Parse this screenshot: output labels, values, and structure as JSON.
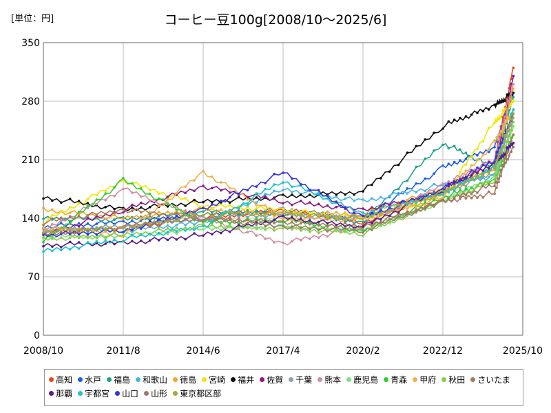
{
  "chart_data": {
    "type": "line",
    "unit_label": "[単位：円]",
    "title": "コーヒー豆100g[2008/10～2025/6]",
    "y_ticks": [
      "0",
      "70",
      "140",
      "210",
      "280",
      "350"
    ],
    "x_ticks": [
      "2008/10",
      "2011/8",
      "2014/6",
      "2017/4",
      "2020/2",
      "2022/12",
      "2025/10"
    ],
    "ylim": [
      0,
      350
    ],
    "grid": true,
    "legend_position": "bottom",
    "series": [
      {
        "name": "高知",
        "color": "#e8481c",
        "points": [
          [
            "2008/10",
            125
          ],
          [
            "2011/8",
            128
          ],
          [
            "2014/6",
            140
          ],
          [
            "2017/4",
            150
          ],
          [
            "2020/2",
            135
          ],
          [
            "2022/12",
            170
          ],
          [
            "2024/10",
            210
          ],
          [
            "2025/6",
            320
          ]
        ]
      },
      {
        "name": "水戸",
        "color": "#1c5fe8",
        "points": [
          [
            "2008/10",
            130
          ],
          [
            "2011/8",
            135
          ],
          [
            "2014/6",
            145
          ],
          [
            "2017/4",
            150
          ],
          [
            "2020/2",
            140
          ],
          [
            "2022/12",
            200
          ],
          [
            "2024/10",
            225
          ],
          [
            "2025/6",
            290
          ]
        ]
      },
      {
        "name": "福島",
        "color": "#1ea38a",
        "points": [
          [
            "2008/10",
            140
          ],
          [
            "2011/8",
            138
          ],
          [
            "2014/6",
            148
          ],
          [
            "2017/4",
            145
          ],
          [
            "2020/2",
            135
          ],
          [
            "2022/12",
            230
          ],
          [
            "2024/10",
            200
          ],
          [
            "2025/6",
            285
          ]
        ]
      },
      {
        "name": "和歌山",
        "color": "#4ab4e8",
        "points": [
          [
            "2008/10",
            128
          ],
          [
            "2011/8",
            125
          ],
          [
            "2014/6",
            135
          ],
          [
            "2017/4",
            175
          ],
          [
            "2020/2",
            160
          ],
          [
            "2022/12",
            180
          ],
          [
            "2024/10",
            190
          ],
          [
            "2025/6",
            270
          ]
        ]
      },
      {
        "name": "徳島",
        "color": "#f5a623",
        "points": [
          [
            "2008/10",
            150
          ],
          [
            "2011/8",
            140
          ],
          [
            "2014/6",
            150
          ],
          [
            "2017/4",
            145
          ],
          [
            "2020/2",
            145
          ],
          [
            "2022/12",
            175
          ],
          [
            "2024/10",
            200
          ],
          [
            "2025/6",
            295
          ]
        ]
      },
      {
        "name": "宮崎",
        "color": "#f2e600",
        "points": [
          [
            "2008/10",
            135
          ],
          [
            "2011/8",
            185
          ],
          [
            "2014/6",
            155
          ],
          [
            "2017/4",
            150
          ],
          [
            "2020/2",
            140
          ],
          [
            "2022/12",
            165
          ],
          [
            "2024/10",
            255
          ],
          [
            "2025/6",
            280
          ]
        ]
      },
      {
        "name": "福井",
        "color": "#111111",
        "points": [
          [
            "2008/10",
            165
          ],
          [
            "2011/8",
            150
          ],
          [
            "2014/6",
            160
          ],
          [
            "2017/4",
            165
          ],
          [
            "2020/2",
            172
          ],
          [
            "2022/12",
            250
          ],
          [
            "2024/10",
            275
          ],
          [
            "2025/6",
            290
          ]
        ]
      },
      {
        "name": "佐賀",
        "color": "#8b1a8b",
        "points": [
          [
            "2008/10",
            120
          ],
          [
            "2011/8",
            150
          ],
          [
            "2014/6",
            178
          ],
          [
            "2017/4",
            160
          ],
          [
            "2020/2",
            150
          ],
          [
            "2022/12",
            170
          ],
          [
            "2024/10",
            200
          ],
          [
            "2025/6",
            310
          ]
        ]
      },
      {
        "name": "千葉",
        "color": "#8aa0b4",
        "points": [
          [
            "2008/10",
            125
          ],
          [
            "2011/8",
            130
          ],
          [
            "2014/6",
            140
          ],
          [
            "2017/4",
            145
          ],
          [
            "2020/2",
            140
          ],
          [
            "2022/12",
            170
          ],
          [
            "2024/10",
            195
          ],
          [
            "2025/6",
            260
          ]
        ]
      },
      {
        "name": "熊本",
        "color": "#d48ca0",
        "points": [
          [
            "2008/10",
            125
          ],
          [
            "2011/8",
            175
          ],
          [
            "2014/6",
            140
          ],
          [
            "2017/4",
            110
          ],
          [
            "2020/2",
            130
          ],
          [
            "2022/12",
            180
          ],
          [
            "2024/10",
            210
          ],
          [
            "2025/6",
            300
          ]
        ]
      },
      {
        "name": "鹿児島",
        "color": "#7fe07f",
        "points": [
          [
            "2008/10",
            118
          ],
          [
            "2011/8",
            118
          ],
          [
            "2014/6",
            128
          ],
          [
            "2017/4",
            130
          ],
          [
            "2020/2",
            125
          ],
          [
            "2022/12",
            160
          ],
          [
            "2024/10",
            190
          ],
          [
            "2025/6",
            250
          ]
        ]
      },
      {
        "name": "青森",
        "color": "#33cc33",
        "points": [
          [
            "2008/10",
            112
          ],
          [
            "2011/8",
            185
          ],
          [
            "2014/6",
            135
          ],
          [
            "2017/4",
            138
          ],
          [
            "2020/2",
            125
          ],
          [
            "2022/12",
            165
          ],
          [
            "2024/10",
            185
          ],
          [
            "2025/6",
            240
          ]
        ]
      },
      {
        "name": "甲府",
        "color": "#f2b04a",
        "points": [
          [
            "2008/10",
            128
          ],
          [
            "2011/8",
            120
          ],
          [
            "2014/6",
            195
          ],
          [
            "2017/4",
            140
          ],
          [
            "2020/2",
            138
          ],
          [
            "2022/12",
            165
          ],
          [
            "2024/10",
            230
          ],
          [
            "2025/6",
            270
          ]
        ]
      },
      {
        "name": "秋田",
        "color": "#8ccc4a",
        "points": [
          [
            "2008/10",
            115
          ],
          [
            "2011/8",
            120
          ],
          [
            "2014/6",
            130
          ],
          [
            "2017/4",
            128
          ],
          [
            "2020/2",
            122
          ],
          [
            "2022/12",
            160
          ],
          [
            "2024/10",
            185
          ],
          [
            "2025/6",
            255
          ]
        ]
      },
      {
        "name": "さいたま",
        "color": "#a87a5a",
        "points": [
          [
            "2008/10",
            135
          ],
          [
            "2011/8",
            150
          ],
          [
            "2014/6",
            140
          ],
          [
            "2017/4",
            135
          ],
          [
            "2020/2",
            130
          ],
          [
            "2022/12",
            160
          ],
          [
            "2024/10",
            170
          ],
          [
            "2025/6",
            240
          ]
        ]
      },
      {
        "name": "那覇",
        "color": "#5a1a8a",
        "points": [
          [
            "2008/10",
            108
          ],
          [
            "2011/8",
            110
          ],
          [
            "2014/6",
            120
          ],
          [
            "2017/4",
            140
          ],
          [
            "2020/2",
            130
          ],
          [
            "2022/12",
            175
          ],
          [
            "2024/10",
            205
          ],
          [
            "2025/6",
            230
          ]
        ]
      },
      {
        "name": "宇都宮",
        "color": "#1cc4c4",
        "points": [
          [
            "2008/10",
            100
          ],
          [
            "2011/8",
            115
          ],
          [
            "2014/6",
            130
          ],
          [
            "2017/4",
            185
          ],
          [
            "2020/2",
            145
          ],
          [
            "2022/12",
            170
          ],
          [
            "2024/10",
            200
          ],
          [
            "2025/6",
            270
          ]
        ]
      },
      {
        "name": "山口",
        "color": "#3333dd",
        "points": [
          [
            "2008/10",
            120
          ],
          [
            "2011/8",
            125
          ],
          [
            "2014/6",
            150
          ],
          [
            "2017/4",
            195
          ],
          [
            "2020/2",
            140
          ],
          [
            "2022/12",
            175
          ],
          [
            "2024/10",
            210
          ],
          [
            "2025/6",
            265
          ]
        ]
      },
      {
        "name": "山形",
        "color": "#9a7a6a",
        "points": [
          [
            "2008/10",
            120
          ],
          [
            "2011/8",
            130
          ],
          [
            "2014/6",
            140
          ],
          [
            "2017/4",
            130
          ],
          [
            "2020/2",
            125
          ],
          [
            "2022/12",
            160
          ],
          [
            "2024/10",
            180
          ],
          [
            "2025/6",
            225
          ]
        ]
      },
      {
        "name": "東京都区部",
        "color": "#a8a838",
        "points": [
          [
            "2008/10",
            125
          ],
          [
            "2011/8",
            128
          ],
          [
            "2014/6",
            145
          ],
          [
            "2017/4",
            145
          ],
          [
            "2020/2",
            140
          ],
          [
            "2022/12",
            170
          ],
          [
            "2024/10",
            200
          ],
          [
            "2025/6",
            265
          ]
        ]
      }
    ]
  }
}
